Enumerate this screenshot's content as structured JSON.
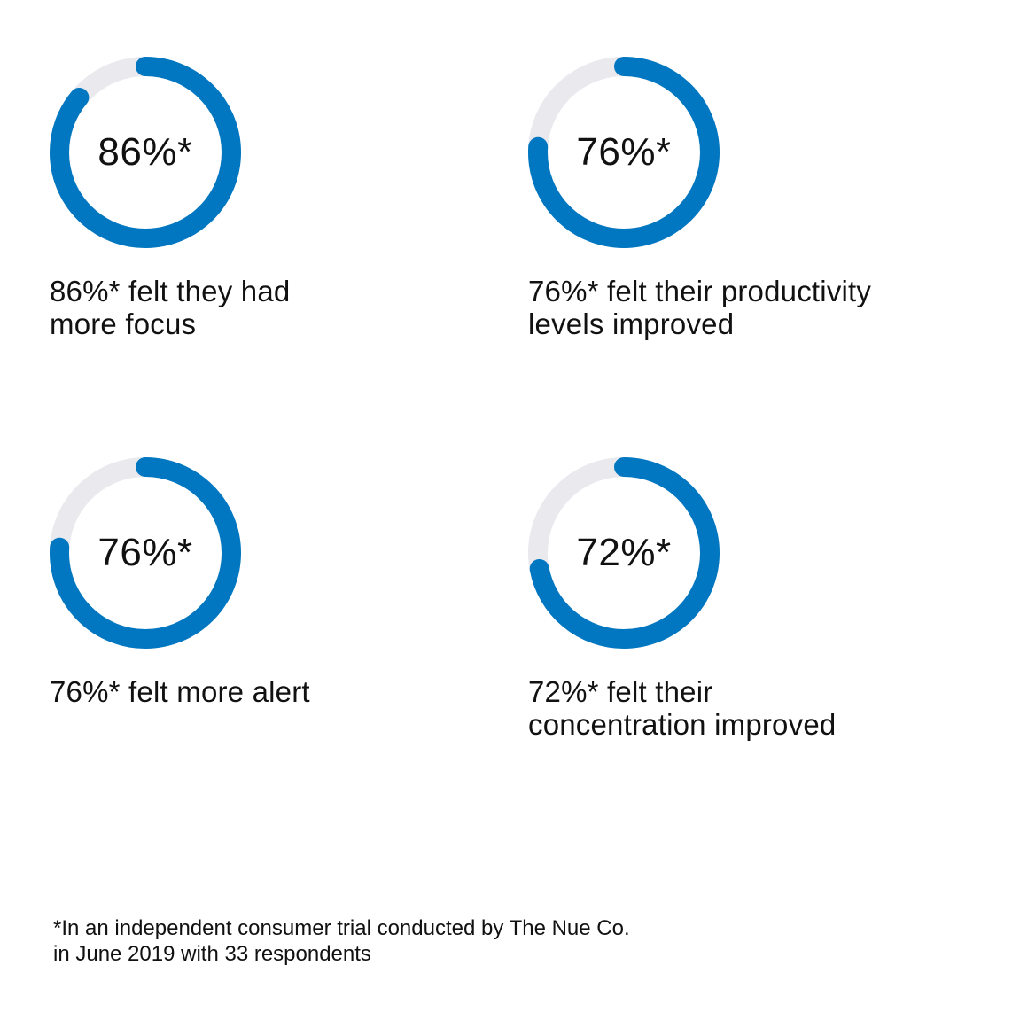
{
  "colors": {
    "accent": "#0077C0",
    "track": "#E9E9EE",
    "text": "#111111",
    "background": "#FFFFFF"
  },
  "chart_data": [
    {
      "type": "donut",
      "value": 86,
      "center_label": "86%*",
      "caption_line1": "86%* felt they had",
      "caption_line2": "more focus"
    },
    {
      "type": "donut",
      "value": 76,
      "center_label": "76%*",
      "caption_line1": "76%* felt their productivity",
      "caption_line2": "levels improved"
    },
    {
      "type": "donut",
      "value": 76,
      "center_label": "76%*",
      "caption_line1": "76%* felt more alert",
      "caption_line2": ""
    },
    {
      "type": "donut",
      "value": 72,
      "center_label": "72%*",
      "caption_line1": "72%* felt their",
      "caption_line2": "concentration improved"
    }
  ],
  "footnote": {
    "line1": "*In an independent consumer trial conducted by The Nue Co.",
    "line2": "in June 2019 with 33 respondents"
  }
}
